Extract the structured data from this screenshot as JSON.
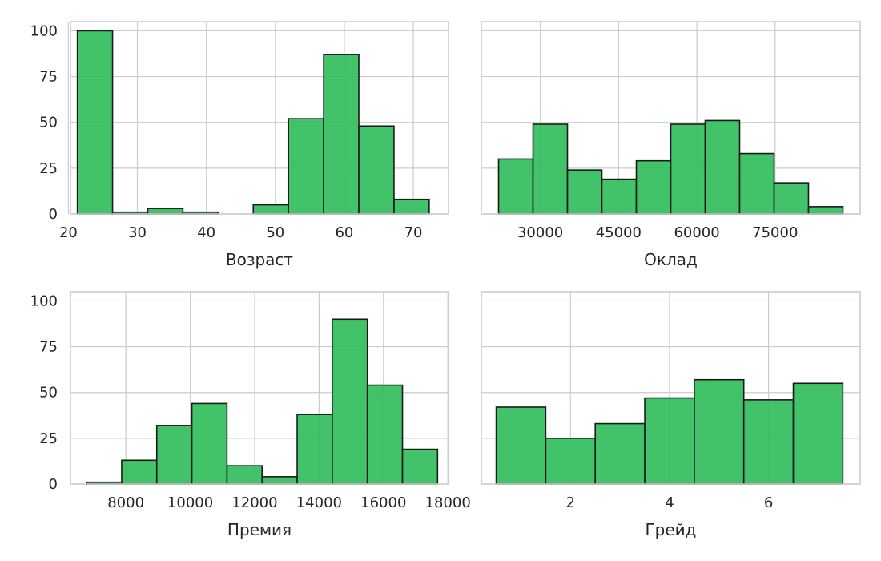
{
  "colors": {
    "bar_fill": "#2ebc5a",
    "bar_edge": "#1a1a1a",
    "grid": "#cccccc",
    "text": "#262626"
  },
  "chart_data": [
    {
      "type": "bar",
      "subtype": "histogram",
      "xlabel": "Возраст",
      "bin_edges": [
        21.3,
        26.4,
        31.5,
        36.6,
        41.7,
        46.8,
        51.9,
        57.0,
        62.1,
        67.2,
        72.3
      ],
      "values": [
        100,
        1,
        3,
        1,
        0,
        5,
        52,
        87,
        48,
        8
      ],
      "xlim": [
        20.3,
        75.1
      ],
      "ylim": [
        0,
        105
      ],
      "xticks": [
        20,
        30,
        40,
        50,
        60,
        70
      ],
      "xtick_labels": [
        "20",
        "30",
        "40",
        "50",
        "60",
        "70"
      ],
      "yticks": [
        0,
        25,
        50,
        75,
        100
      ],
      "ytick_labels": [
        "0",
        "25",
        "50",
        "75",
        "100"
      ],
      "show_yticklabels": true,
      "grid": true
    },
    {
      "type": "bar",
      "subtype": "histogram",
      "xlabel": "Оклад",
      "bin_edges": [
        22000,
        28600,
        35200,
        41800,
        48400,
        55000,
        61600,
        68200,
        74800,
        81400,
        88000
      ],
      "values": [
        30,
        49,
        24,
        19,
        29,
        49,
        51,
        33,
        17,
        4
      ],
      "xlim": [
        18700,
        91300
      ],
      "ylim": [
        0,
        105
      ],
      "xticks": [
        30000,
        45000,
        60000,
        75000
      ],
      "xtick_labels": [
        "30000",
        "45000",
        "60000",
        "75000"
      ],
      "yticks": [
        0,
        25,
        50,
        75,
        100
      ],
      "ytick_labels": [
        "",
        "",
        "",
        "",
        ""
      ],
      "show_yticklabels": false,
      "grid": true
    },
    {
      "type": "bar",
      "subtype": "histogram",
      "xlabel": "Премия",
      "bin_edges": [
        6780,
        7870,
        8960,
        10050,
        11140,
        12230,
        13320,
        14410,
        15500,
        16590,
        17680
      ],
      "values": [
        1,
        13,
        32,
        44,
        10,
        4,
        38,
        90,
        54,
        19
      ],
      "xlim": [
        6280,
        18020
      ],
      "ylim": [
        0,
        105
      ],
      "xticks": [
        8000,
        10000,
        12000,
        14000,
        16000,
        18000
      ],
      "xtick_labels": [
        "8000",
        "10000",
        "12000",
        "14000",
        "16000",
        "18000"
      ],
      "yticks": [
        0,
        25,
        50,
        75,
        100
      ],
      "ytick_labels": [
        "0",
        "25",
        "50",
        "75",
        "100"
      ],
      "show_yticklabels": true,
      "grid": true
    },
    {
      "type": "bar",
      "subtype": "histogram",
      "xlabel": "Грейд",
      "bin_edges": [
        0.5,
        1.5,
        2.5,
        3.5,
        4.5,
        5.5,
        6.5,
        7.5
      ],
      "values": [
        42,
        25,
        33,
        47,
        57,
        46,
        55
      ],
      "xlim": [
        0.2,
        7.85
      ],
      "ylim": [
        0,
        105
      ],
      "xticks": [
        2,
        4,
        6
      ],
      "xtick_labels": [
        "2",
        "4",
        "6"
      ],
      "yticks": [
        0,
        25,
        50,
        75,
        100
      ],
      "ytick_labels": [
        "",
        "",
        "",
        "",
        ""
      ],
      "show_yticklabels": false,
      "grid": true
    }
  ]
}
